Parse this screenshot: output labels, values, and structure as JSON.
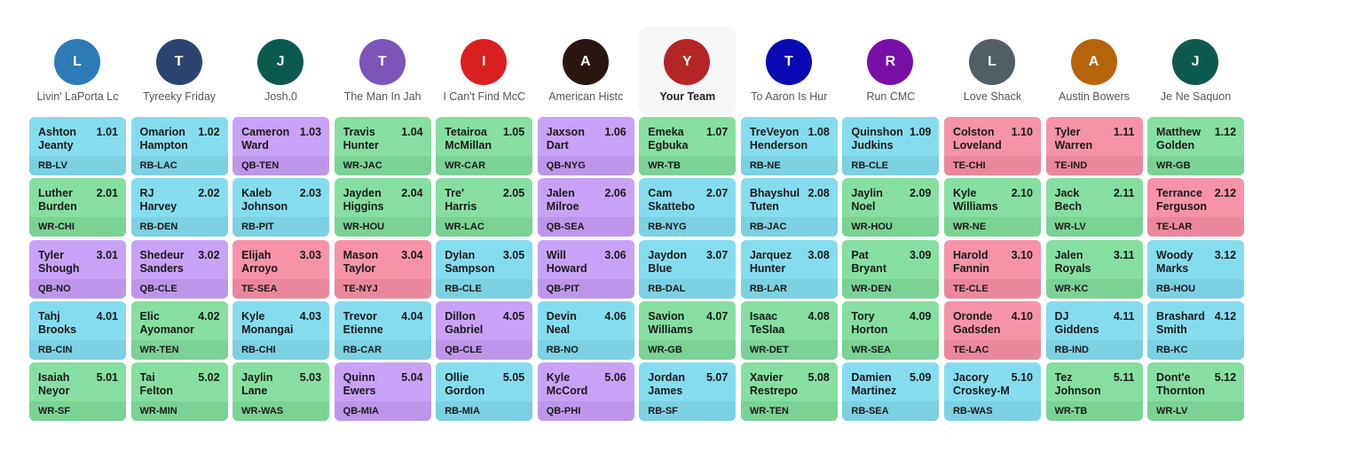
{
  "teams": [
    {
      "initial": "L",
      "name": "Livin' LaPorta Lc",
      "color": "#2c7bb6"
    },
    {
      "initial": "T",
      "name": "Tyreeky Friday",
      "color": "#2c4470"
    },
    {
      "initial": "J",
      "name": "Josh.0",
      "color": "#0b5a50"
    },
    {
      "initial": "T",
      "name": "The Man In Jah",
      "color": "#7b55b8"
    },
    {
      "initial": "I",
      "name": "I Can't Find McC",
      "color": "#d9201f"
    },
    {
      "initial": "A",
      "name": "American Histc",
      "color": "#2a1610"
    },
    {
      "initial": "Y",
      "name": "Your Team",
      "color": "#b52427",
      "current": true
    },
    {
      "initial": "T",
      "name": "To Aaron Is Hur",
      "color": "#0a0ab5"
    },
    {
      "initial": "R",
      "name": "Run CMC",
      "color": "#7a0fa8"
    },
    {
      "initial": "L",
      "name": "Love Shack",
      "color": "#4f5f63"
    },
    {
      "initial": "A",
      "name": "Austin Bowers",
      "color": "#b5640b"
    },
    {
      "initial": "J",
      "name": "Je Ne Saquon",
      "color": "#0f5a4e"
    }
  ],
  "position_colors": {
    "RB": {
      "bg": "#86dcef",
      "strip": "#7bd0e2"
    },
    "WR": {
      "bg": "#86dfa0",
      "strip": "#7bd295"
    },
    "QB": {
      "bg": "#c8a2f6",
      "strip": "#bd96ea"
    },
    "TE": {
      "bg": "#f693a8",
      "strip": "#ea879c"
    }
  },
  "rounds": [
    [
      {
        "name": "Ashton\nJeanty",
        "pick": "1.01",
        "pos": "RB-LV"
      },
      {
        "name": "Omarion\nHampton",
        "pick": "1.02",
        "pos": "RB-LAC"
      },
      {
        "name": "Cameron\nWard",
        "pick": "1.03",
        "pos": "QB-TEN"
      },
      {
        "name": "Travis\nHunter",
        "pick": "1.04",
        "pos": "WR-JAC"
      },
      {
        "name": "Tetairoa\nMcMillan",
        "pick": "1.05",
        "pos": "WR-CAR"
      },
      {
        "name": "Jaxson\nDart",
        "pick": "1.06",
        "pos": "QB-NYG"
      },
      {
        "name": "Emeka\nEgbuka",
        "pick": "1.07",
        "pos": "WR-TB"
      },
      {
        "name": "TreVeyon\nHenderson",
        "pick": "1.08",
        "pos": "RB-NE"
      },
      {
        "name": "Quinshon\nJudkins",
        "pick": "1.09",
        "pos": "RB-CLE"
      },
      {
        "name": "Colston\nLoveland",
        "pick": "1.10",
        "pos": "TE-CHI"
      },
      {
        "name": "Tyler\nWarren",
        "pick": "1.11",
        "pos": "TE-IND"
      },
      {
        "name": "Matthew\nGolden",
        "pick": "1.12",
        "pos": "WR-GB"
      }
    ],
    [
      {
        "name": "Luther\nBurden",
        "pick": "2.01",
        "pos": "WR-CHI"
      },
      {
        "name": "RJ\nHarvey",
        "pick": "2.02",
        "pos": "RB-DEN"
      },
      {
        "name": "Kaleb\nJohnson",
        "pick": "2.03",
        "pos": "RB-PIT"
      },
      {
        "name": "Jayden\nHiggins",
        "pick": "2.04",
        "pos": "WR-HOU"
      },
      {
        "name": "Tre'\nHarris",
        "pick": "2.05",
        "pos": "WR-LAC"
      },
      {
        "name": "Jalen\nMilroe",
        "pick": "2.06",
        "pos": "QB-SEA"
      },
      {
        "name": "Cam\nSkattebo",
        "pick": "2.07",
        "pos": "RB-NYG"
      },
      {
        "name": "Bhayshul\nTuten",
        "pick": "2.08",
        "pos": "RB-JAC"
      },
      {
        "name": "Jaylin\nNoel",
        "pick": "2.09",
        "pos": "WR-HOU"
      },
      {
        "name": "Kyle\nWilliams",
        "pick": "2.10",
        "pos": "WR-NE"
      },
      {
        "name": "Jack\nBech",
        "pick": "2.11",
        "pos": "WR-LV"
      },
      {
        "name": "Terrance\nFerguson",
        "pick": "2.12",
        "pos": "TE-LAR"
      }
    ],
    [
      {
        "name": "Tyler\nShough",
        "pick": "3.01",
        "pos": "QB-NO"
      },
      {
        "name": "Shedeur\nSanders",
        "pick": "3.02",
        "pos": "QB-CLE"
      },
      {
        "name": "Elijah\nArroyo",
        "pick": "3.03",
        "pos": "TE-SEA"
      },
      {
        "name": "Mason\nTaylor",
        "pick": "3.04",
        "pos": "TE-NYJ"
      },
      {
        "name": "Dylan\nSampson",
        "pick": "3.05",
        "pos": "RB-CLE"
      },
      {
        "name": "Will\nHoward",
        "pick": "3.06",
        "pos": "QB-PIT"
      },
      {
        "name": "Jaydon\nBlue",
        "pick": "3.07",
        "pos": "RB-DAL"
      },
      {
        "name": "Jarquez\nHunter",
        "pick": "3.08",
        "pos": "RB-LAR"
      },
      {
        "name": "Pat\nBryant",
        "pick": "3.09",
        "pos": "WR-DEN"
      },
      {
        "name": "Harold\nFannin",
        "pick": "3.10",
        "pos": "TE-CLE"
      },
      {
        "name": "Jalen\nRoyals",
        "pick": "3.11",
        "pos": "WR-KC"
      },
      {
        "name": "Woody\nMarks",
        "pick": "3.12",
        "pos": "RB-HOU"
      }
    ],
    [
      {
        "name": "Tahj\nBrooks",
        "pick": "4.01",
        "pos": "RB-CIN"
      },
      {
        "name": "Elic\nAyomanor",
        "pick": "4.02",
        "pos": "WR-TEN"
      },
      {
        "name": "Kyle\nMonangai",
        "pick": "4.03",
        "pos": "RB-CHI"
      },
      {
        "name": "Trevor\nEtienne",
        "pick": "4.04",
        "pos": "RB-CAR"
      },
      {
        "name": "Dillon\nGabriel",
        "pick": "4.05",
        "pos": "QB-CLE"
      },
      {
        "name": "Devin\nNeal",
        "pick": "4.06",
        "pos": "RB-NO"
      },
      {
        "name": "Savion\nWilliams",
        "pick": "4.07",
        "pos": "WR-GB"
      },
      {
        "name": "Isaac\nTeSlaa",
        "pick": "4.08",
        "pos": "WR-DET"
      },
      {
        "name": "Tory\nHorton",
        "pick": "4.09",
        "pos": "WR-SEA"
      },
      {
        "name": "Oronde\nGadsden",
        "pick": "4.10",
        "pos": "TE-LAC"
      },
      {
        "name": "DJ\nGiddens",
        "pick": "4.11",
        "pos": "RB-IND"
      },
      {
        "name": "Brashard\nSmith",
        "pick": "4.12",
        "pos": "RB-KC"
      }
    ],
    [
      {
        "name": "Isaiah\nNeyor",
        "pick": "5.01",
        "pos": "WR-SF"
      },
      {
        "name": "Tai\nFelton",
        "pick": "5.02",
        "pos": "WR-MIN"
      },
      {
        "name": "Jaylin\nLane",
        "pick": "5.03",
        "pos": "WR-WAS"
      },
      {
        "name": "Quinn\nEwers",
        "pick": "5.04",
        "pos": "QB-MIA"
      },
      {
        "name": "Ollie\nGordon",
        "pick": "5.05",
        "pos": "RB-MIA"
      },
      {
        "name": "Kyle\nMcCord",
        "pick": "5.06",
        "pos": "QB-PHI"
      },
      {
        "name": "Jordan\nJames",
        "pick": "5.07",
        "pos": "RB-SF"
      },
      {
        "name": "Xavier\nRestrepo",
        "pick": "5.08",
        "pos": "WR-TEN"
      },
      {
        "name": "Damien\nMartinez",
        "pick": "5.09",
        "pos": "RB-SEA"
      },
      {
        "name": "Jacory\nCroskey-M",
        "pick": "5.10",
        "pos": "RB-WAS"
      },
      {
        "name": "Tez\nJohnson",
        "pick": "5.11",
        "pos": "WR-TB"
      },
      {
        "name": "Dont'e\nThornton",
        "pick": "5.12",
        "pos": "WR-LV"
      }
    ]
  ]
}
